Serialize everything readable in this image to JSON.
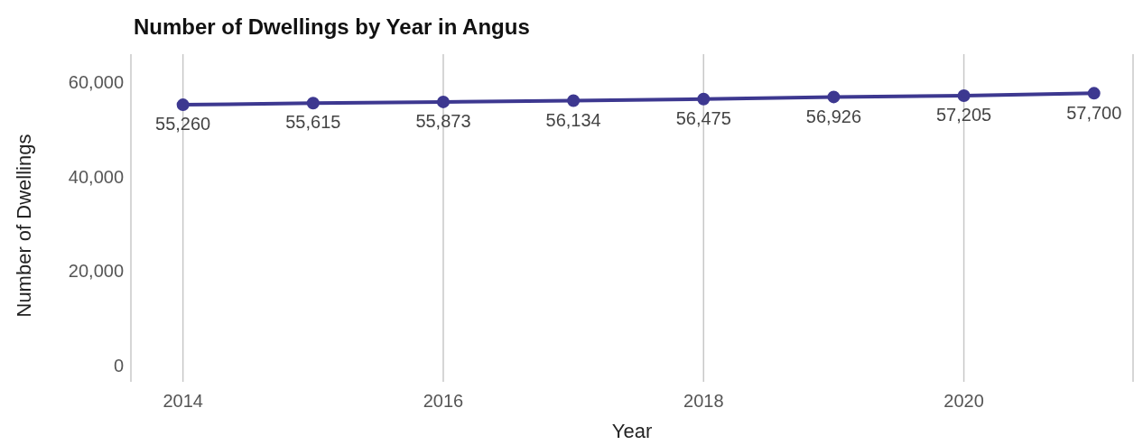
{
  "chart_data": {
    "type": "line",
    "title": "Number of Dwellings by Year in Angus",
    "xlabel": "Year",
    "ylabel": "Number of Dwellings",
    "x": [
      2014,
      2015,
      2016,
      2017,
      2018,
      2019,
      2020,
      2021
    ],
    "series": [
      {
        "color": "#3d3890",
        "values": [
          55260,
          55615,
          55873,
          56134,
          56475,
          56926,
          57205,
          57700
        ],
        "value_labels": [
          "55,260",
          "55,615",
          "55,873",
          "56,134",
          "56,475",
          "56,926",
          "57,205",
          "57,700"
        ]
      }
    ],
    "xlim": [
      2013.6,
      2021.3
    ],
    "xticks": [
      2014,
      2016,
      2018,
      2020
    ],
    "ylim": [
      -3500,
      66000
    ],
    "yticks": [
      0,
      {
        "value": 20000,
        "label": "20,000"
      },
      {
        "value": 40000,
        "label": "40,000"
      },
      {
        "value": 60000,
        "label": "60,000"
      }
    ],
    "grid": "x",
    "marker": "circle",
    "line_style": "solid"
  }
}
